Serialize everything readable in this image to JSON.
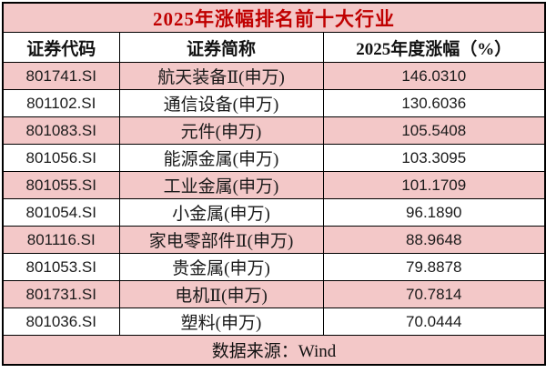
{
  "chart_data": {
    "type": "table",
    "title": "2025年涨幅排名前十大行业",
    "columns": [
      "证券代码",
      "证券简称",
      "2025年度涨幅（%）"
    ],
    "rows": [
      [
        "801741.SI",
        "航天装备Ⅱ(申万)",
        "146.0310"
      ],
      [
        "801102.SI",
        "通信设备(申万)",
        "130.6036"
      ],
      [
        "801083.SI",
        "元件(申万)",
        "105.5408"
      ],
      [
        "801056.SI",
        "能源金属(申万)",
        "103.3095"
      ],
      [
        "801055.SI",
        "工业金属(申万)",
        "101.1709"
      ],
      [
        "801054.SI",
        "小金属(申万)",
        "96.1890"
      ],
      [
        "801116.SI",
        "家电零部件Ⅱ(申万)",
        "88.9648"
      ],
      [
        "801053.SI",
        "贵金属(申万)",
        "79.8878"
      ],
      [
        "801731.SI",
        "电机Ⅱ(申万)",
        "70.7814"
      ],
      [
        "801036.SI",
        "塑料(申万)",
        "70.0444"
      ]
    ],
    "source": "数据来源：Wind",
    "colors": {
      "highlight_bg": "#f3c8c8",
      "title_text": "#c00000",
      "body_text": "#1a1a1a",
      "border": "#000000"
    },
    "layout": {
      "striped": "alternating pink/white, first data row pink",
      "alignment": "center",
      "legend": "none",
      "grid": "full black gridlines"
    }
  }
}
